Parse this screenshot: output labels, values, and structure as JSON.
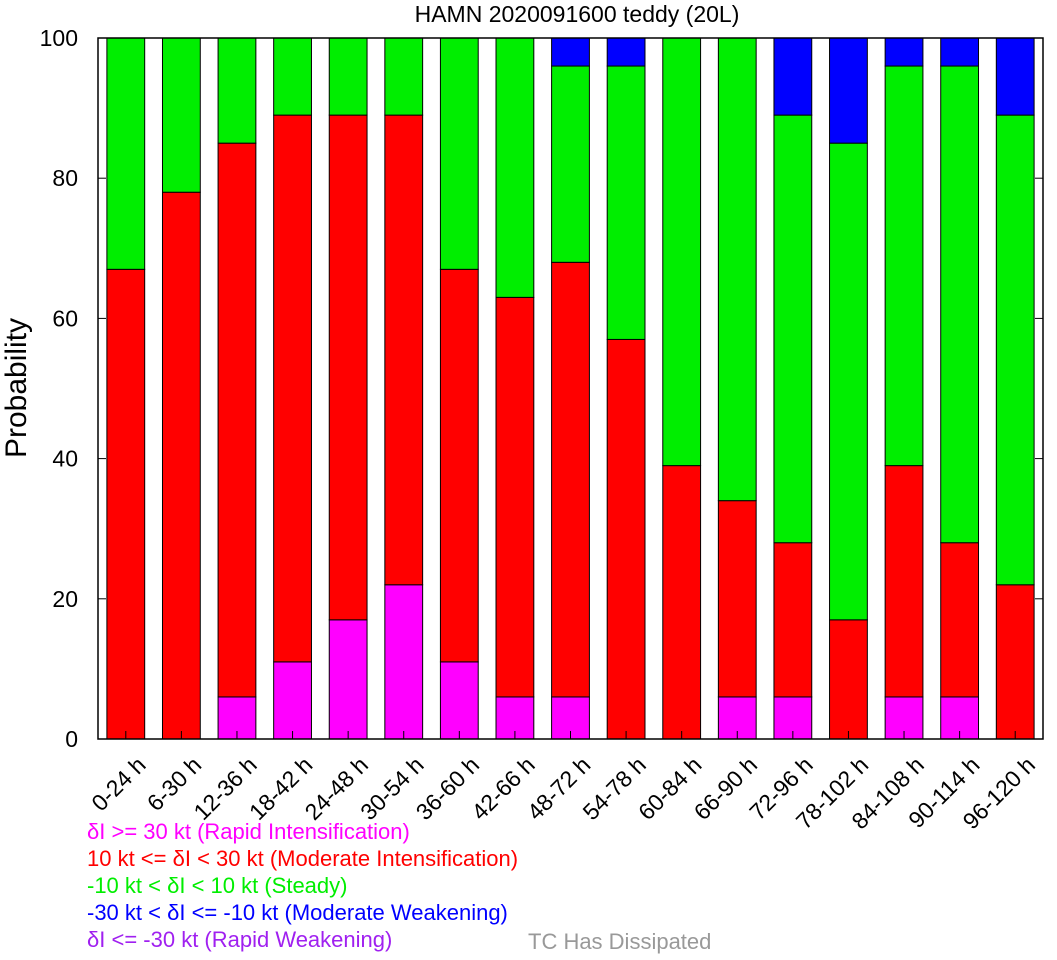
{
  "chart_data": {
    "type": "bar",
    "stacked": true,
    "title": "HAMN 2020091600 teddy (20L)",
    "ylabel": "Probability",
    "xlabel": "",
    "ylim": [
      0,
      100
    ],
    "yticks": [
      "0",
      "20",
      "40",
      "60",
      "80",
      "100"
    ],
    "categories": [
      "0-24 h",
      "6-30 h",
      "12-36 h",
      "18-42 h",
      "24-48 h",
      "30-54 h",
      "36-60 h",
      "42-66 h",
      "48-72 h",
      "54-78 h",
      "60-84 h",
      "66-90 h",
      "72-96 h",
      "78-102 h",
      "84-108 h",
      "90-114 h",
      "96-120 h"
    ],
    "series": [
      {
        "name": "δI >= 30 kt (Rapid Intensification)",
        "color": "#ff00ff",
        "values": [
          0,
          0,
          6,
          11,
          17,
          22,
          11,
          6,
          6,
          0,
          0,
          6,
          6,
          0,
          6,
          6,
          0
        ]
      },
      {
        "name": "10 kt <= δI < 30 kt (Moderate Intensification)",
        "color": "#ff0000",
        "values": [
          67,
          78,
          79,
          78,
          72,
          67,
          56,
          57,
          62,
          57,
          39,
          28,
          22,
          17,
          33,
          22,
          22
        ]
      },
      {
        "name": "-10 kt < δI < 10 kt (Steady)",
        "color": "#00ee00",
        "values": [
          33,
          22,
          15,
          11,
          11,
          11,
          33,
          37,
          28,
          39,
          61,
          66,
          61,
          68,
          57,
          68,
          67
        ]
      },
      {
        "name": "-30 kt < δI <= -10 kt (Moderate Weakening)",
        "color": "#0000ff",
        "values": [
          0,
          0,
          0,
          0,
          0,
          0,
          0,
          0,
          4,
          4,
          0,
          0,
          11,
          15,
          4,
          4,
          11
        ]
      },
      {
        "name": "δI <= -30 kt (Rapid Weakening)",
        "color": "#a020f0",
        "values": [
          0,
          0,
          0,
          0,
          0,
          0,
          0,
          0,
          0,
          0,
          0,
          0,
          0,
          0,
          0,
          0,
          0
        ]
      }
    ],
    "dissipated_label": "TC Has Dissipated",
    "dissipated_color": "#999999",
    "legend_placement": "bottom-left",
    "grid": false
  }
}
